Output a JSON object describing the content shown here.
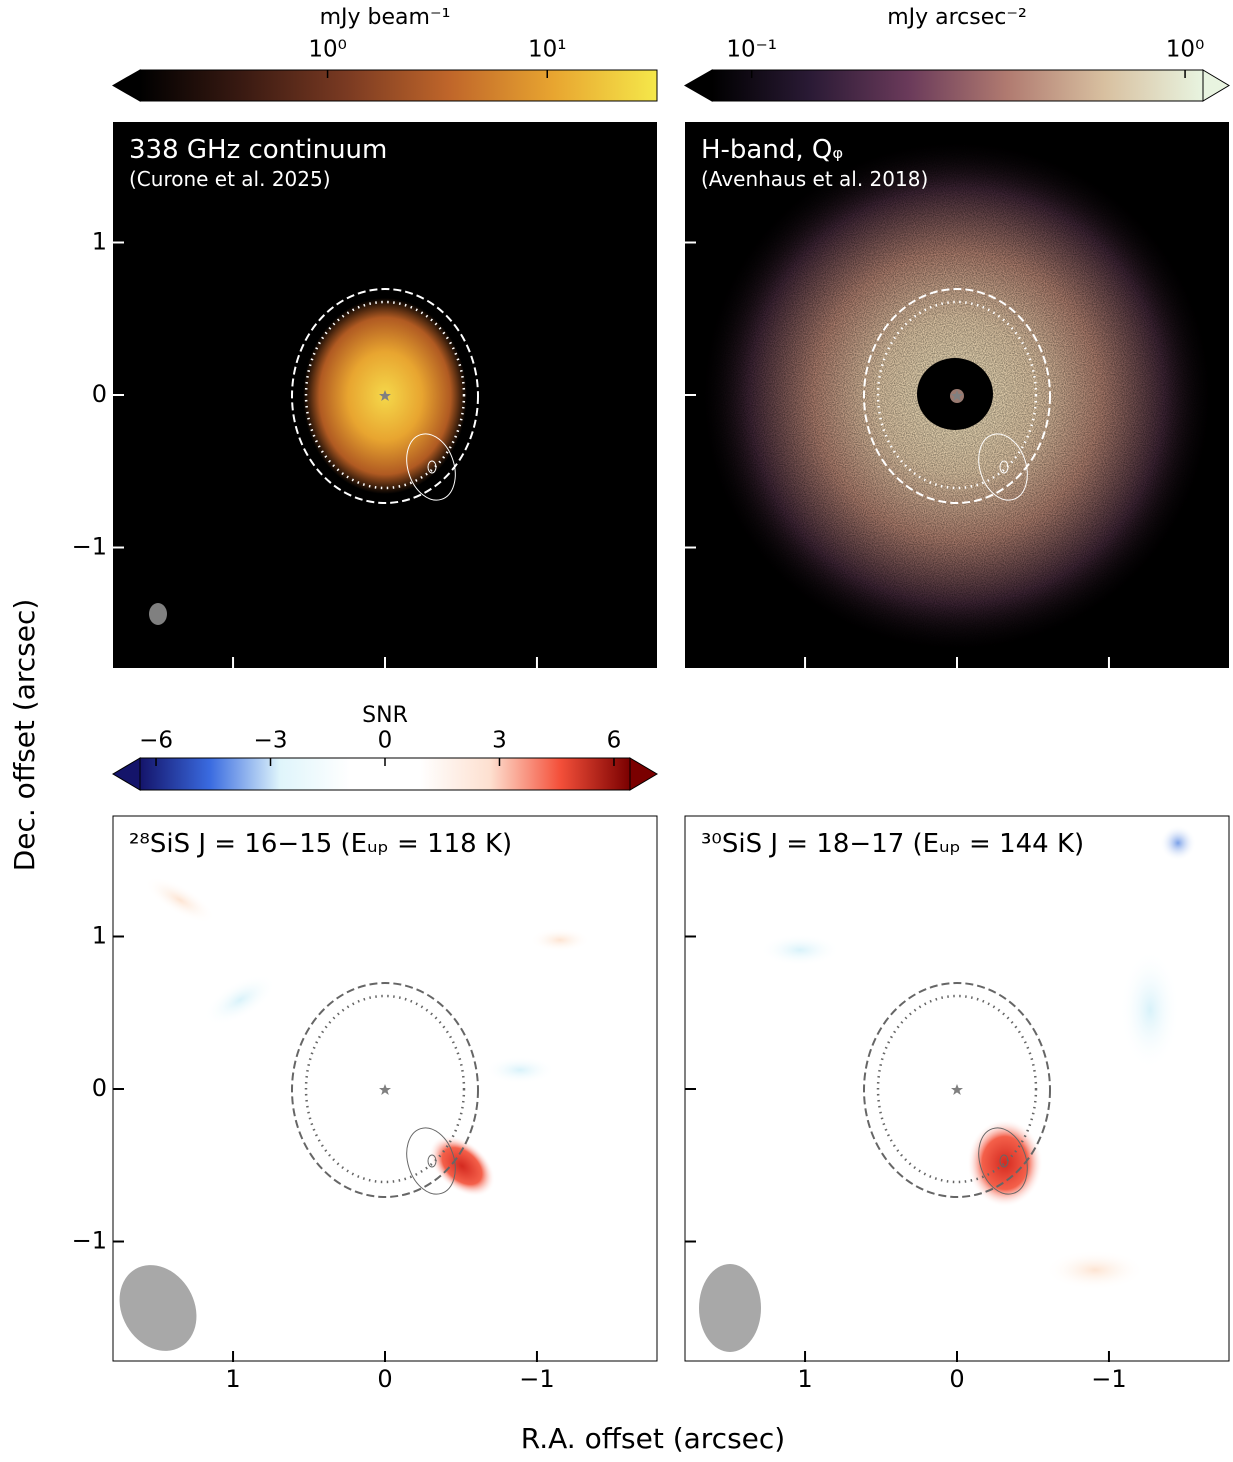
{
  "xlabel": "R.A. offset (arcsec)",
  "ylabel": "Dec. offset (arcsec)",
  "chart_data": [
    {
      "type": "image",
      "title": "338 GHz continuum",
      "subtitle": "(Curone et al. 2025)",
      "xlim": [
        1.79,
        -1.79
      ],
      "ylim": [
        -1.79,
        1.79
      ],
      "xticks": [
        1,
        0,
        {
          "value": -1,
          "label": "−1"
        }
      ],
      "yticks": [
        {
          "value": -1,
          "label": "−1"
        },
        0,
        1
      ]
    },
    {
      "type": "image",
      "title": "H-band, Qᵩ",
      "subtitle": "(Avenhaus et al. 2018)",
      "xlim": [
        1.79,
        -1.79
      ],
      "ylim": [
        -1.79,
        1.79
      ],
      "xticks": [
        1,
        0,
        {
          "value": -1,
          "label": "−1"
        }
      ],
      "yticks": [
        {
          "value": -1,
          "label": "−1"
        },
        0,
        1
      ]
    },
    {
      "type": "image",
      "title": "²⁸SiS J = 16−15 (Eᵤₚ = 118 K)",
      "xlim": [
        1.79,
        -1.79
      ],
      "ylim": [
        -1.79,
        1.79
      ],
      "xticks": [
        1,
        0,
        {
          "value": -1,
          "label": "−1"
        }
      ],
      "yticks": [
        {
          "value": -1,
          "label": "−1"
        },
        0,
        1
      ]
    },
    {
      "type": "image",
      "title": "³⁰SiS J = 18−17 (Eᵤₚ = 144 K)",
      "xlim": [
        1.79,
        -1.79
      ],
      "ylim": [
        -1.79,
        1.79
      ],
      "xticks": [
        1,
        0,
        {
          "value": -1,
          "label": "−1"
        }
      ],
      "yticks": [
        {
          "value": -1,
          "label": "−1"
        },
        0,
        1
      ]
    }
  ],
  "colorbars": [
    {
      "label": "mJy beam⁻¹",
      "log": true,
      "lim": [
        0.14,
        31.6
      ],
      "ticks": [
        {
          "value": 1,
          "label": "10⁰"
        },
        {
          "value": 10,
          "label": "10¹"
        }
      ],
      "extend": "min",
      "colors": [
        "#000000",
        "#3a1a12",
        "#7a3a22",
        "#c0662a",
        "#e8a530",
        "#f5e84a"
      ]
    },
    {
      "label": "mJy arcsec⁻²",
      "log": true,
      "lim": [
        0.081,
        1.1
      ],
      "ticks": [
        {
          "value": 0.1,
          "label": "10⁻¹"
        },
        {
          "value": 1,
          "label": "10⁰"
        }
      ],
      "extend": "both",
      "colors": [
        "#000000",
        "#2a1a35",
        "#6a3a5a",
        "#b07a70",
        "#d8c0a0",
        "#e8f4e0"
      ]
    },
    {
      "label": "SNR",
      "log": false,
      "lim": [
        -6.42,
        6.42
      ],
      "ticks": [
        {
          "value": -6,
          "label": "−6"
        },
        {
          "value": -3,
          "label": "−3"
        },
        0,
        3,
        6
      ],
      "extend": "both",
      "colors": [
        "#14146a",
        "#3a6be0",
        "#dff5fb",
        "#ffffff",
        "#ffffff",
        "#fde0d0",
        "#f4503a",
        "#7a0000"
      ]
    }
  ]
}
